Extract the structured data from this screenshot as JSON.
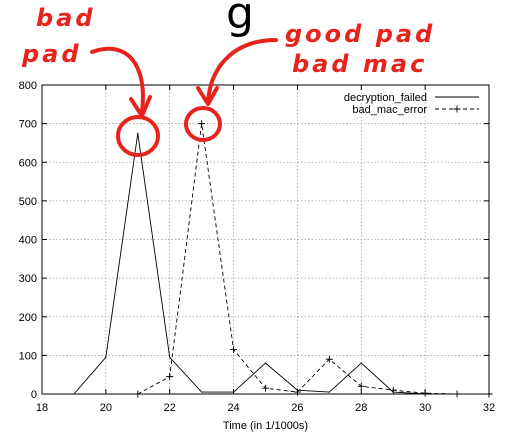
{
  "heading_fragment": "g",
  "annotations": {
    "bad_pad_line1": "bad",
    "bad_pad_line2": "pad",
    "good_pad_line1": "good pad",
    "good_pad_line2": "bad mac",
    "color": "#e8231c"
  },
  "chart_data": {
    "type": "line",
    "xlabel": "Time (in 1/1000s)",
    "ylabel": "",
    "xlim": [
      18,
      32
    ],
    "ylim": [
      0,
      800
    ],
    "x_ticks": [
      18,
      20,
      22,
      24,
      26,
      28,
      30,
      32
    ],
    "y_ticks": [
      0,
      100,
      200,
      300,
      400,
      500,
      600,
      700,
      800
    ],
    "grid": true,
    "legend_position": "top-right",
    "series": [
      {
        "name": "decryption_failed",
        "style": "solid",
        "points": [
          [
            19,
            0
          ],
          [
            20,
            95
          ],
          [
            21,
            675
          ],
          [
            22,
            95
          ],
          [
            23,
            5
          ],
          [
            24,
            5
          ],
          [
            25,
            80
          ],
          [
            26,
            10
          ],
          [
            27,
            5
          ],
          [
            28,
            80
          ],
          [
            29,
            5
          ],
          [
            30,
            0
          ],
          [
            31,
            0
          ]
        ]
      },
      {
        "name": "bad_mac_error",
        "style": "dashed-plus",
        "points": [
          [
            21,
            0
          ],
          [
            22,
            45
          ],
          [
            23,
            700
          ],
          [
            24,
            115
          ],
          [
            25,
            15
          ],
          [
            26,
            5
          ],
          [
            27,
            90
          ],
          [
            28,
            20
          ],
          [
            29,
            10
          ],
          [
            30,
            2
          ],
          [
            31,
            0
          ],
          [
            32,
            0
          ]
        ]
      }
    ]
  }
}
